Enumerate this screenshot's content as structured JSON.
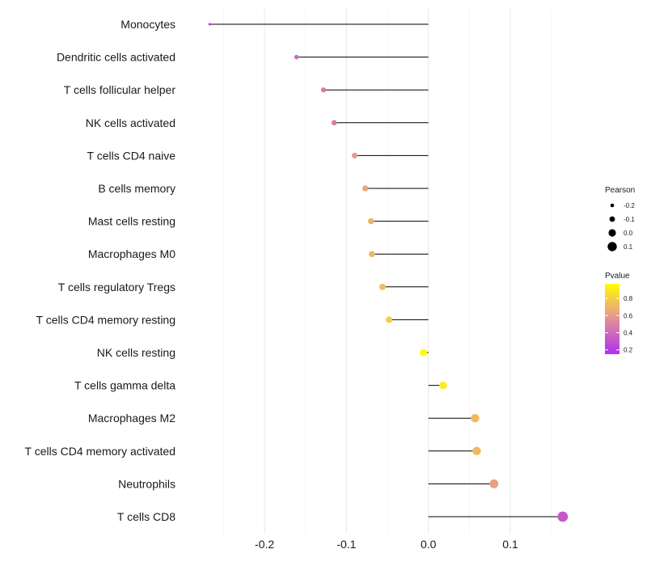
{
  "chart_data": {
    "type": "lollipop",
    "xlim": [
      -0.285,
      0.18
    ],
    "xticks": [
      -0.2,
      -0.1,
      0.0,
      0.1
    ],
    "xtick_labels": [
      "-0.2",
      "-0.1",
      "0.0",
      "0.1"
    ],
    "grid": true,
    "legend_position": "right",
    "points": [
      {
        "label": "Monocytes",
        "pearson": -0.267,
        "pvalue": 0.12
      },
      {
        "label": "Dendritic cells activated",
        "pearson": -0.161,
        "pvalue": 0.38
      },
      {
        "label": "T cells follicular helper",
        "pearson": -0.128,
        "pvalue": 0.46
      },
      {
        "label": "NK cells activated",
        "pearson": -0.115,
        "pvalue": 0.47
      },
      {
        "label": "T cells CD4 naive",
        "pearson": -0.09,
        "pvalue": 0.6
      },
      {
        "label": "B cells memory",
        "pearson": -0.077,
        "pvalue": 0.65
      },
      {
        "label": "Mast cells resting",
        "pearson": -0.07,
        "pvalue": 0.7
      },
      {
        "label": "Macrophages M0",
        "pearson": -0.069,
        "pvalue": 0.7
      },
      {
        "label": "T cells regulatory  Tregs ",
        "pearson": -0.056,
        "pvalue": 0.73
      },
      {
        "label": "T cells CD4 memory resting",
        "pearson": -0.048,
        "pvalue": 0.79
      },
      {
        "label": "NK cells resting",
        "pearson": -0.006,
        "pvalue": 0.97
      },
      {
        "label": "T cells gamma delta",
        "pearson": 0.018,
        "pvalue": 0.9
      },
      {
        "label": "Macrophages M2",
        "pearson": 0.057,
        "pvalue": 0.72
      },
      {
        "label": "T cells CD4 memory activated",
        "pearson": 0.059,
        "pvalue": 0.71
      },
      {
        "label": "Neutrophils",
        "pearson": 0.08,
        "pvalue": 0.62
      },
      {
        "label": "T cells CD8",
        "pearson": 0.164,
        "pvalue": 0.32
      }
    ],
    "size_legend": {
      "title": "Pearson",
      "values": [
        -0.2,
        -0.1,
        0.0,
        0.1
      ],
      "labels": [
        "-0.2",
        "-0.1",
        "0.0",
        "0.1"
      ]
    },
    "color_legend": {
      "title": "Pvalue",
      "range": [
        0.15,
        0.97
      ],
      "ticks": [
        0.2,
        0.4,
        0.6,
        0.8
      ],
      "tick_labels": [
        "0.2",
        "0.4",
        "0.6",
        "0.8"
      ],
      "low_color": "#B030F0",
      "mid_color": "#E89A8C",
      "high_color": "#FFFF00"
    }
  }
}
